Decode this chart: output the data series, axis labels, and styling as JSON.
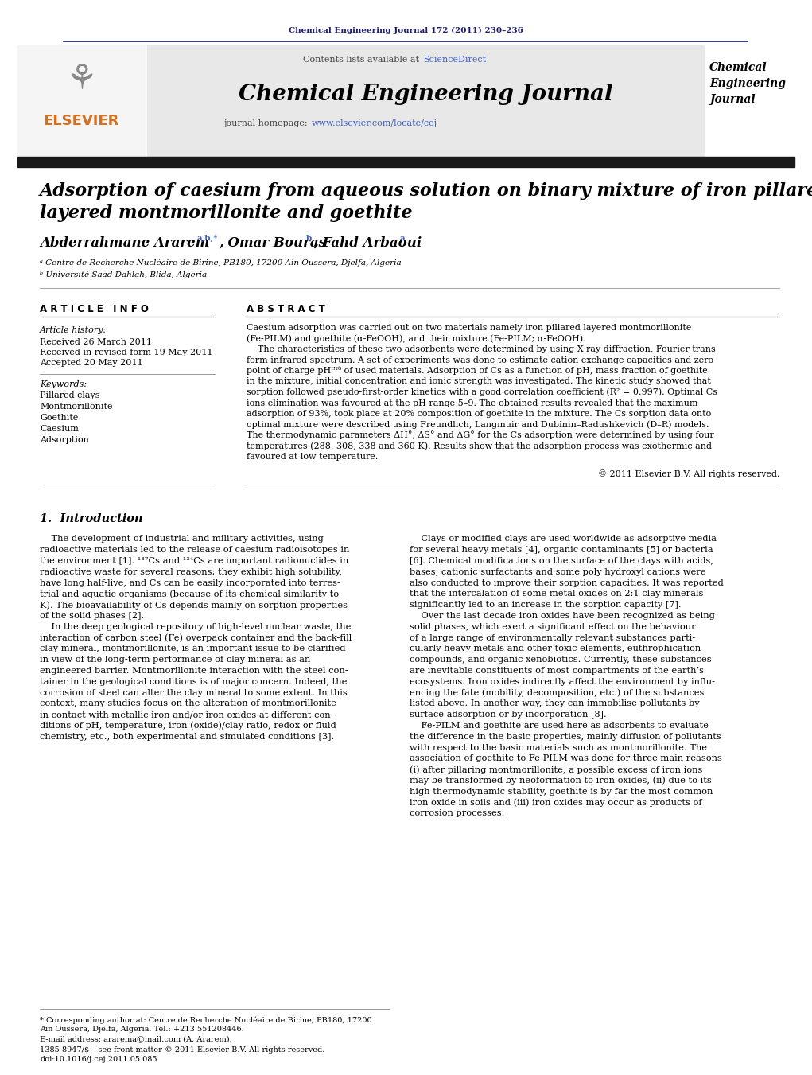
{
  "page_width": 10.21,
  "page_height": 13.51,
  "background_color": "#ffffff",
  "top_citation": "Chemical Engineering Journal 172 (2011) 230–236",
  "journal_title": "Chemical Engineering Journal",
  "journal_sidebar_lines": [
    "Chemical",
    "Engineering",
    "Journal"
  ],
  "article_title_line1": "Adsorption of caesium from aqueous solution on binary mixture of iron pillared",
  "article_title_line2": "layered montmorillonite and goethite",
  "affiliation_a": "ᵃ Centre de Recherche Nucléaire de Birine, PB180, 17200 Ain Oussera, Djelfa, Algeria",
  "affiliation_b": "ᵇ Université Saad Dahlah, Blida, Algeria",
  "article_info_header": "A R T I C L E   I N F O",
  "abstract_header": "A B S T R A C T",
  "article_history_label": "Article history:",
  "received": "Received 26 March 2011",
  "received_revised": "Received in revised form 19 May 2011",
  "accepted": "Accepted 20 May 2011",
  "keywords_label": "Keywords:",
  "keywords": [
    "Pillared clays",
    "Montmorillonite",
    "Goethite",
    "Caesium",
    "Adsorption"
  ],
  "copyright": "© 2011 Elsevier B.V. All rights reserved.",
  "section1_header": "1.  Introduction",
  "footnote_corresponding": "* Corresponding author at: Centre de Recherche Nucléaire de Birine, PB180, 17200",
  "footnote_corresponding2": "Ain Oussera, Djelfa, Algeria. Tel.: +213 551208446.",
  "footnote_email": "E-mail address: ararema@mail.com (A. Ararem).",
  "footnote_issn": "1385-8947/$ – see front matter © 2011 Elsevier B.V. All rights reserved.",
  "footnote_doi": "doi:10.1016/j.cej.2011.05.085",
  "color_navy": "#1a1a6e",
  "color_orange": "#d47020",
  "color_link": "#4060c0",
  "color_black": "#000000",
  "color_gray_bg": "#e8e8e8",
  "color_dark_bar": "#1a1a1a"
}
